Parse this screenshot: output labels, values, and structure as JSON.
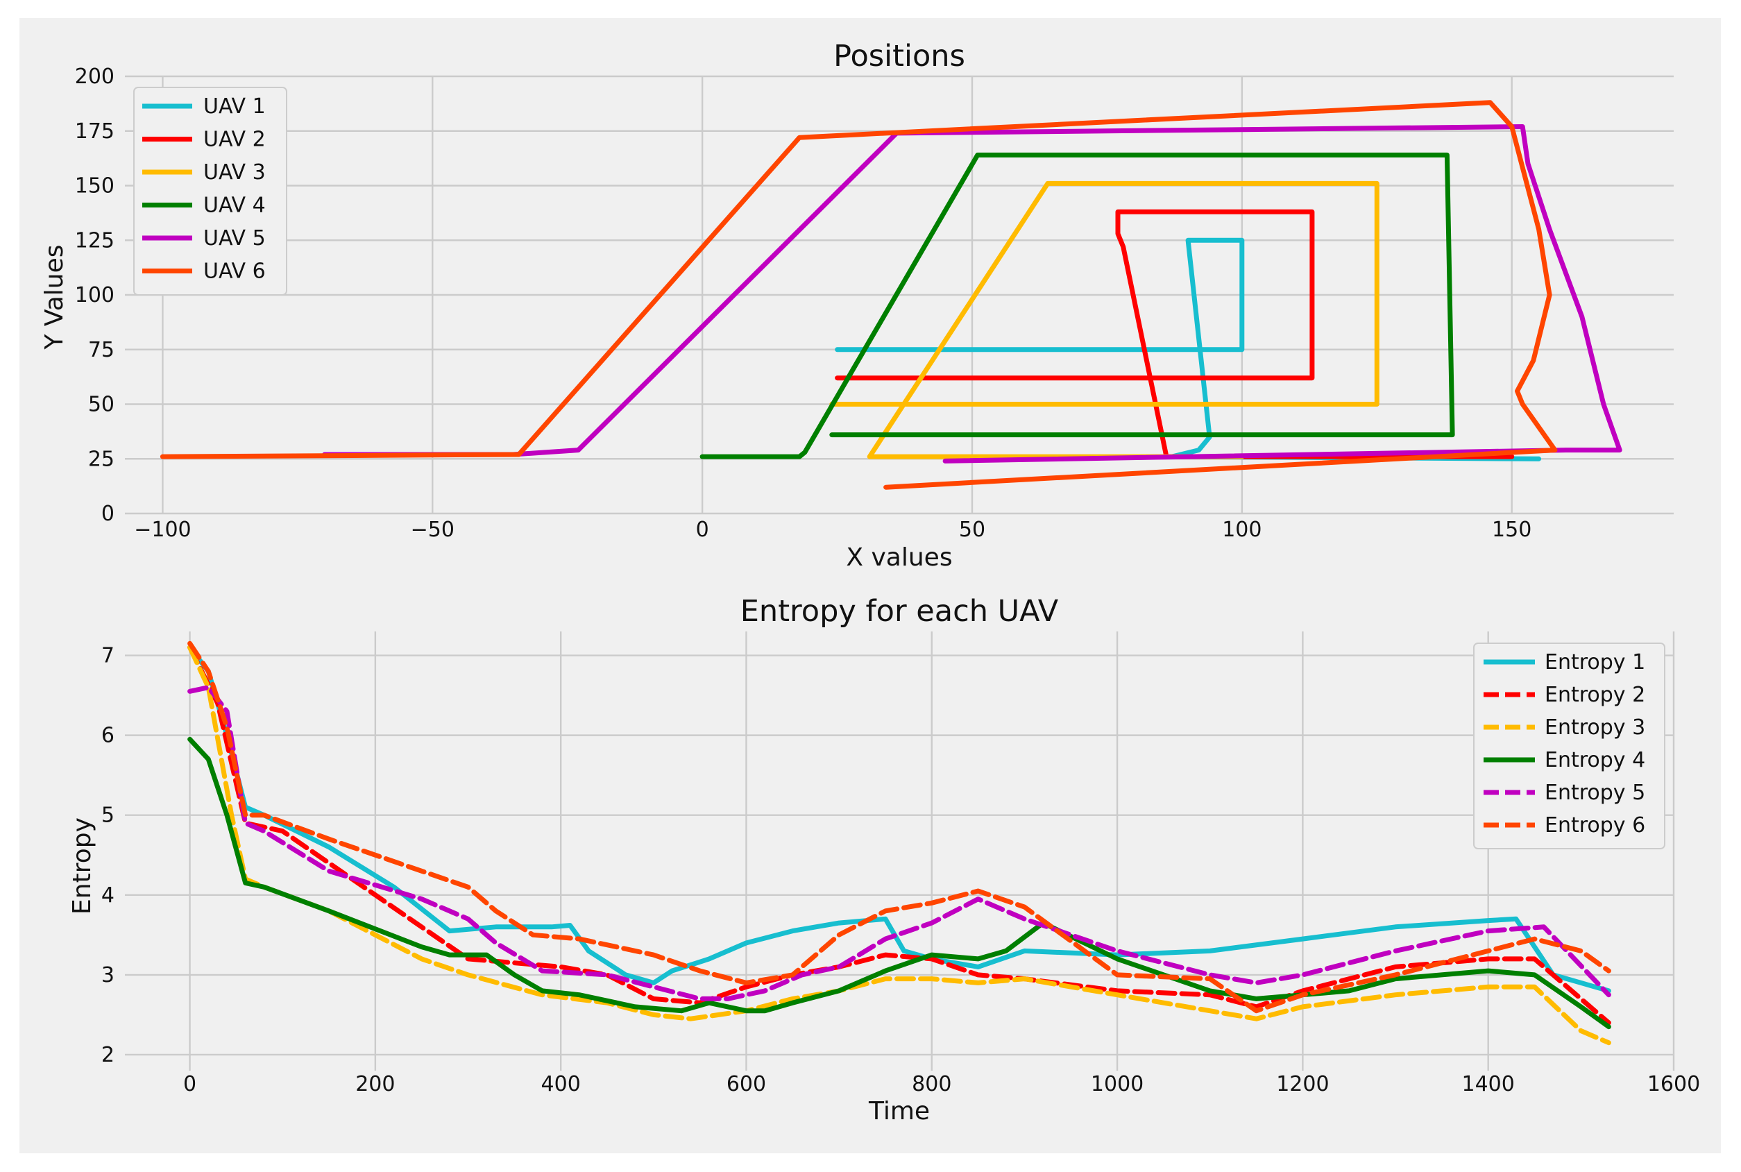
{
  "chart_data": [
    {
      "type": "line",
      "title": "Positions",
      "xlabel": "X values",
      "ylabel": "Y Values",
      "xlim": [
        -107,
        180
      ],
      "ylim": [
        0,
        200
      ],
      "xticks": [
        -100,
        -50,
        0,
        50,
        100,
        150
      ],
      "xtick_labels": [
        "−100",
        "−50",
        "0",
        "50",
        "100",
        "150"
      ],
      "yticks": [
        0,
        25,
        50,
        75,
        100,
        125,
        150,
        175,
        200
      ],
      "ytick_labels": [
        "0",
        "25",
        "50",
        "75",
        "100",
        "125",
        "150",
        "175",
        "200"
      ],
      "grid": true,
      "legend_position": "top-left",
      "series": [
        {
          "name": "UAV 1",
          "color": "#17becf",
          "dashed": false,
          "x": [
            25,
            100,
            100,
            90,
            94,
            92,
            87,
            155
          ],
          "y": [
            75,
            75,
            125,
            125,
            35,
            29,
            26,
            25
          ]
        },
        {
          "name": "UAV 2",
          "color": "#ff0000",
          "dashed": false,
          "x": [
            25,
            113,
            113,
            77,
            77,
            78,
            86,
            150
          ],
          "y": [
            62,
            62,
            138,
            138,
            128,
            122,
            26,
            26
          ]
        },
        {
          "name": "UAV 3",
          "color": "#ffbb00",
          "dashed": false,
          "x": [
            24,
            125,
            125,
            64,
            31,
            45,
            100
          ],
          "y": [
            50,
            50,
            151,
            151,
            26,
            26,
            26
          ]
        },
        {
          "name": "UAV 4",
          "color": "#007f00",
          "dashed": false,
          "x": [
            24,
            139,
            138,
            51,
            19,
            18,
            0
          ],
          "y": [
            36,
            36,
            164,
            164,
            28,
            26,
            26
          ]
        },
        {
          "name": "UAV 5",
          "color": "#c000c0",
          "dashed": false,
          "x": [
            -70,
            -35,
            -23,
            36,
            152,
            153,
            157,
            163,
            167,
            170,
            160,
            45
          ],
          "y": [
            27,
            27,
            29,
            174,
            177,
            160,
            130,
            90,
            50,
            29,
            29,
            24
          ]
        },
        {
          "name": "UAV 6",
          "color": "#ff4500",
          "dashed": false,
          "x": [
            -100,
            -34,
            18,
            146,
            150,
            155,
            157,
            154,
            151,
            152,
            158,
            34
          ],
          "y": [
            26,
            27,
            172,
            188,
            177,
            130,
            100,
            70,
            56,
            50,
            29,
            12
          ]
        }
      ]
    },
    {
      "type": "line",
      "title": "Entropy for each UAV",
      "xlabel": "Time",
      "ylabel": "Entropy",
      "xlim": [
        -70,
        1600
      ],
      "ylim": [
        1.8,
        7.3
      ],
      "xticks": [
        0,
        200,
        400,
        600,
        800,
        1000,
        1200,
        1400,
        1600
      ],
      "xtick_labels": [
        "0",
        "200",
        "400",
        "600",
        "800",
        "1000",
        "1200",
        "1400",
        "1600"
      ],
      "yticks": [
        2,
        3,
        4,
        5,
        6,
        7
      ],
      "ytick_labels": [
        "2",
        "3",
        "4",
        "5",
        "6",
        "7"
      ],
      "grid": true,
      "legend_position": "top-right",
      "series": [
        {
          "name": "Entropy 1",
          "color": "#17becf",
          "dashed": false,
          "x": [
            0,
            20,
            40,
            60,
            80,
            150,
            220,
            280,
            330,
            390,
            410,
            430,
            470,
            500,
            520,
            560,
            600,
            650,
            700,
            750,
            770,
            800,
            850,
            900,
            1000,
            1100,
            1200,
            1300,
            1400,
            1430,
            1470,
            1530
          ],
          "y": [
            7.1,
            6.8,
            6.0,
            5.1,
            5.0,
            4.6,
            4.1,
            3.55,
            3.6,
            3.6,
            3.62,
            3.3,
            3.0,
            2.9,
            3.05,
            3.2,
            3.4,
            3.55,
            3.65,
            3.7,
            3.3,
            3.2,
            3.1,
            3.3,
            3.25,
            3.3,
            3.45,
            3.6,
            3.68,
            3.7,
            3.0,
            2.8
          ]
        },
        {
          "name": "Entropy 2",
          "color": "#ff0000",
          "dashed": true,
          "x": [
            0,
            30,
            60,
            100,
            200,
            300,
            400,
            450,
            500,
            550,
            600,
            650,
            700,
            750,
            800,
            850,
            900,
            1000,
            1100,
            1150,
            1200,
            1300,
            1400,
            1450,
            1530
          ],
          "y": [
            7.1,
            6.4,
            4.9,
            4.8,
            4.0,
            3.2,
            3.1,
            3.0,
            2.7,
            2.65,
            2.85,
            3.0,
            3.1,
            3.25,
            3.2,
            3.0,
            2.95,
            2.8,
            2.75,
            2.6,
            2.8,
            3.1,
            3.2,
            3.2,
            2.4
          ]
        },
        {
          "name": "Entropy 3",
          "color": "#ffbb00",
          "dashed": true,
          "x": [
            0,
            20,
            45,
            60,
            80,
            150,
            250,
            300,
            380,
            450,
            500,
            540,
            600,
            650,
            700,
            750,
            800,
            850,
            900,
            1000,
            1100,
            1150,
            1200,
            1300,
            1400,
            1450,
            1500,
            1530
          ],
          "y": [
            7.1,
            6.6,
            5.0,
            4.2,
            4.1,
            3.8,
            3.2,
            3.0,
            2.75,
            2.65,
            2.5,
            2.45,
            2.55,
            2.7,
            2.8,
            2.95,
            2.95,
            2.9,
            2.95,
            2.75,
            2.55,
            2.45,
            2.6,
            2.75,
            2.85,
            2.85,
            2.3,
            2.15
          ]
        },
        {
          "name": "Entropy 4",
          "color": "#007f00",
          "dashed": false,
          "x": [
            0,
            20,
            40,
            60,
            80,
            150,
            250,
            280,
            320,
            350,
            380,
            420,
            480,
            530,
            560,
            600,
            620,
            650,
            700,
            750,
            800,
            850,
            880,
            920,
            1000,
            1100,
            1150,
            1200,
            1250,
            1300,
            1400,
            1450,
            1500,
            1530
          ],
          "y": [
            5.95,
            5.7,
            5.0,
            4.15,
            4.1,
            3.8,
            3.35,
            3.25,
            3.25,
            3.0,
            2.8,
            2.75,
            2.6,
            2.55,
            2.65,
            2.55,
            2.55,
            2.65,
            2.8,
            3.05,
            3.25,
            3.2,
            3.3,
            3.65,
            3.2,
            2.8,
            2.7,
            2.75,
            2.8,
            2.95,
            3.05,
            3.0,
            2.6,
            2.35
          ]
        },
        {
          "name": "Entropy 5",
          "color": "#c000c0",
          "dashed": true,
          "x": [
            0,
            20,
            40,
            60,
            80,
            150,
            250,
            300,
            330,
            380,
            450,
            500,
            550,
            580,
            620,
            660,
            700,
            750,
            800,
            850,
            900,
            1000,
            1100,
            1150,
            1200,
            1300,
            1400,
            1460,
            1530
          ],
          "y": [
            6.55,
            6.6,
            6.3,
            4.9,
            4.8,
            4.3,
            3.95,
            3.7,
            3.4,
            3.05,
            3.0,
            2.85,
            2.7,
            2.7,
            2.8,
            3.0,
            3.1,
            3.45,
            3.65,
            3.95,
            3.7,
            3.3,
            3.0,
            2.9,
            3.0,
            3.3,
            3.55,
            3.6,
            2.75
          ]
        },
        {
          "name": "Entropy 6",
          "color": "#ff4500",
          "dashed": true,
          "x": [
            0,
            20,
            40,
            60,
            80,
            150,
            250,
            300,
            330,
            370,
            420,
            500,
            550,
            600,
            650,
            700,
            750,
            800,
            850,
            900,
            1000,
            1100,
            1150,
            1200,
            1300,
            1400,
            1450,
            1500,
            1530
          ],
          "y": [
            7.15,
            6.8,
            6.1,
            5.0,
            5.0,
            4.7,
            4.3,
            4.1,
            3.8,
            3.5,
            3.45,
            3.25,
            3.05,
            2.9,
            3.0,
            3.5,
            3.8,
            3.9,
            4.05,
            3.85,
            3.0,
            2.95,
            2.55,
            2.75,
            3.0,
            3.3,
            3.45,
            3.3,
            3.05
          ]
        }
      ]
    }
  ]
}
